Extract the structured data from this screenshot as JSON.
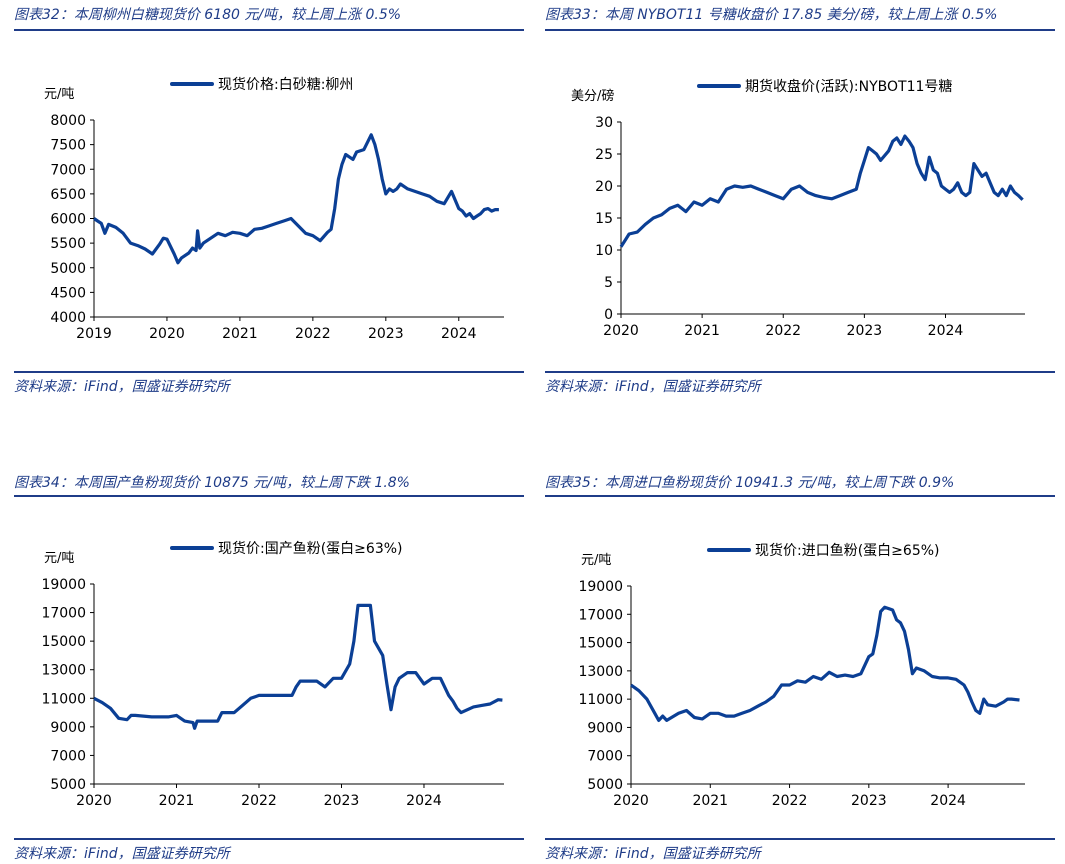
{
  "panels": [
    {
      "caption": "图表32：本周柳州白糖现货价 6180 元/吨，较上周上涨 0.5%",
      "source": "资料来源：iFind，国盛证券研究所"
    },
    {
      "caption": "图表33：本周 NYBOT11 号糖收盘价 17.85 美分/磅，较上周上涨 0.5%",
      "source": "资料来源：iFind，国盛证券研究所"
    },
    {
      "caption": "图表34：本周国产鱼粉现货价 10875 元/吨，较上周下跌 1.8%",
      "source": "资料来源：iFind，国盛证券研究所"
    },
    {
      "caption": "图表35：本周进口鱼粉现货价 10941.3 元/吨，较上周下跌 0.9%",
      "source": "资料来源：iFind，国盛证券研究所"
    }
  ],
  "chart_data": [
    {
      "type": "line",
      "ylabel": "元/吨",
      "yticks": [
        4000,
        4500,
        5000,
        5500,
        6000,
        6500,
        7000,
        7500,
        8000
      ],
      "ylim": [
        4000,
        8000
      ],
      "xticks": [
        "2019",
        "2020",
        "2021",
        "2022",
        "2023",
        "2024"
      ],
      "xlim": [
        2019,
        2024.62
      ],
      "legend": "top",
      "grid": false,
      "color": "#0b3f95",
      "series": [
        {
          "name": "现货价格:白砂糖:柳州",
          "x": [
            2019.0,
            2019.05,
            2019.1,
            2019.15,
            2019.2,
            2019.3,
            2019.4,
            2019.5,
            2019.6,
            2019.7,
            2019.8,
            2019.9,
            2019.95,
            2020.0,
            2020.1,
            2020.15,
            2020.2,
            2020.3,
            2020.35,
            2020.4,
            2020.42,
            2020.45,
            2020.5,
            2020.6,
            2020.7,
            2020.8,
            2020.9,
            2021.0,
            2021.1,
            2021.2,
            2021.3,
            2021.4,
            2021.5,
            2021.6,
            2021.7,
            2021.8,
            2021.9,
            2022.0,
            2022.1,
            2022.2,
            2022.25,
            2022.3,
            2022.35,
            2022.4,
            2022.45,
            2022.5,
            2022.55,
            2022.6,
            2022.7,
            2022.8,
            2022.85,
            2022.9,
            2022.95,
            2023.0,
            2023.05,
            2023.1,
            2023.15,
            2023.2,
            2023.3,
            2023.4,
            2023.5,
            2023.6,
            2023.7,
            2023.8,
            2023.9,
            2024.0,
            2024.05,
            2024.1,
            2024.15,
            2024.2,
            2024.25,
            2024.3,
            2024.35,
            2024.4,
            2024.45,
            2024.5,
            2024.55
          ],
          "y": [
            6000,
            5950,
            5900,
            5700,
            5880,
            5820,
            5700,
            5500,
            5450,
            5380,
            5280,
            5480,
            5600,
            5580,
            5280,
            5100,
            5200,
            5300,
            5400,
            5350,
            5750,
            5400,
            5500,
            5600,
            5700,
            5650,
            5720,
            5700,
            5650,
            5780,
            5800,
            5850,
            5900,
            5950,
            6000,
            5850,
            5700,
            5650,
            5550,
            5720,
            5780,
            6200,
            6800,
            7100,
            7300,
            7250,
            7200,
            7350,
            7400,
            7700,
            7500,
            7200,
            6800,
            6500,
            6600,
            6550,
            6600,
            6700,
            6600,
            6550,
            6500,
            6450,
            6350,
            6300,
            6550,
            6200,
            6150,
            6050,
            6100,
            6000,
            6050,
            6100,
            6180,
            6200,
            6150,
            6180,
            6180
          ]
        }
      ]
    },
    {
      "type": "line",
      "ylabel": "美分/磅",
      "yticks": [
        0,
        5,
        10,
        15,
        20,
        25,
        30
      ],
      "ylim": [
        0,
        30
      ],
      "xticks": [
        "2020",
        "2021",
        "2022",
        "2023",
        "2024"
      ],
      "xlim": [
        2020,
        2024.98
      ],
      "legend": "top",
      "grid": false,
      "color": "#0b3f95",
      "series": [
        {
          "name": "期货收盘价(活跃):NYBOT11号糖",
          "x": [
            2020.0,
            2020.05,
            2020.1,
            2020.2,
            2020.3,
            2020.4,
            2020.5,
            2020.6,
            2020.7,
            2020.8,
            2020.9,
            2021.0,
            2021.1,
            2021.2,
            2021.3,
            2021.4,
            2021.5,
            2021.6,
            2021.7,
            2021.8,
            2021.9,
            2022.0,
            2022.1,
            2022.2,
            2022.3,
            2022.4,
            2022.5,
            2022.6,
            2022.7,
            2022.8,
            2022.9,
            2022.95,
            2023.0,
            2023.05,
            2023.1,
            2023.15,
            2023.2,
            2023.3,
            2023.35,
            2023.4,
            2023.45,
            2023.5,
            2023.55,
            2023.6,
            2023.65,
            2023.7,
            2023.75,
            2023.8,
            2023.85,
            2023.9,
            2023.95,
            2024.0,
            2024.05,
            2024.1,
            2024.15,
            2024.2,
            2024.25,
            2024.3,
            2024.35,
            2024.4,
            2024.45,
            2024.5,
            2024.55,
            2024.6,
            2024.65,
            2024.7,
            2024.75,
            2024.8,
            2024.85,
            2024.9,
            2024.95
          ],
          "y": [
            10.5,
            11.5,
            12.5,
            12.8,
            14.0,
            15.0,
            15.5,
            16.5,
            17.0,
            16.0,
            17.5,
            17.0,
            18.0,
            17.5,
            19.5,
            20.0,
            19.8,
            20.0,
            19.5,
            19.0,
            18.5,
            18.0,
            19.5,
            20.0,
            19.0,
            18.5,
            18.2,
            18.0,
            18.5,
            19.0,
            19.5,
            22.0,
            24.0,
            26.0,
            25.5,
            25.0,
            24.0,
            25.5,
            27.0,
            27.5,
            26.5,
            27.8,
            27.0,
            26.0,
            23.5,
            22.0,
            21.0,
            24.5,
            22.5,
            22.0,
            20.0,
            19.5,
            19.0,
            19.5,
            20.5,
            19.0,
            18.5,
            19.0,
            23.5,
            22.5,
            21.5,
            22.0,
            20.5,
            19.0,
            18.5,
            19.5,
            18.5,
            20.0,
            19.0,
            18.5,
            17.85
          ]
        }
      ]
    },
    {
      "type": "line",
      "ylabel": "元/吨",
      "yticks": [
        5000,
        7000,
        9000,
        11000,
        13000,
        15000,
        17000,
        19000
      ],
      "ylim": [
        5000,
        19000
      ],
      "xticks": [
        "2020",
        "2021",
        "2022",
        "2023",
        "2024"
      ],
      "xlim": [
        2020,
        2024.97
      ],
      "legend": "top",
      "grid": false,
      "color": "#0b3f95",
      "series": [
        {
          "name": "现货价:国产鱼粉(蛋白≥63%)",
          "x": [
            2020.0,
            2020.1,
            2020.2,
            2020.3,
            2020.4,
            2020.45,
            2020.5,
            2020.7,
            2020.9,
            2021.0,
            2021.1,
            2021.2,
            2021.22,
            2021.25,
            2021.5,
            2021.55,
            2021.7,
            2021.8,
            2021.9,
            2022.0,
            2022.3,
            2022.4,
            2022.45,
            2022.5,
            2022.7,
            2022.8,
            2022.9,
            2023.0,
            2023.1,
            2023.15,
            2023.2,
            2023.35,
            2023.4,
            2023.5,
            2023.55,
            2023.6,
            2023.65,
            2023.7,
            2023.8,
            2023.9,
            2024.0,
            2024.1,
            2024.2,
            2024.3,
            2024.35,
            2024.4,
            2024.45,
            2024.6,
            2024.7,
            2024.8,
            2024.9,
            2024.95
          ],
          "y": [
            11000,
            10700,
            10300,
            9600,
            9500,
            9800,
            9800,
            9700,
            9700,
            9800,
            9400,
            9300,
            8900,
            9400,
            9400,
            10000,
            10000,
            10500,
            11000,
            11200,
            11200,
            11200,
            11800,
            12200,
            12200,
            11800,
            12400,
            12400,
            13400,
            15000,
            17500,
            17500,
            15000,
            14000,
            12000,
            10200,
            11800,
            12400,
            12800,
            12800,
            12000,
            12400,
            12400,
            11200,
            10800,
            10300,
            10000,
            10400,
            10500,
            10600,
            10900,
            10875
          ]
        }
      ]
    },
    {
      "type": "line",
      "ylabel": "元/吨",
      "yticks": [
        5000,
        7000,
        9000,
        11000,
        13000,
        15000,
        17000,
        19000
      ],
      "ylim": [
        5000,
        19000
      ],
      "xticks": [
        "2020",
        "2021",
        "2022",
        "2023",
        "2024"
      ],
      "xlim": [
        2020,
        2024.97
      ],
      "legend": "top",
      "grid": false,
      "color": "#0b3f95",
      "series": [
        {
          "name": "现货价:进口鱼粉(蛋白≥65%)",
          "x": [
            2020.0,
            2020.1,
            2020.2,
            2020.3,
            2020.35,
            2020.4,
            2020.45,
            2020.6,
            2020.7,
            2020.8,
            2020.9,
            2021.0,
            2021.1,
            2021.2,
            2021.3,
            2021.4,
            2021.5,
            2021.6,
            2021.7,
            2021.8,
            2021.9,
            2022.0,
            2022.1,
            2022.2,
            2022.3,
            2022.4,
            2022.5,
            2022.6,
            2022.7,
            2022.8,
            2022.9,
            2023.0,
            2023.05,
            2023.1,
            2023.15,
            2023.2,
            2023.3,
            2023.35,
            2023.4,
            2023.45,
            2023.5,
            2023.55,
            2023.6,
            2023.7,
            2023.8,
            2023.9,
            2024.0,
            2024.1,
            2024.2,
            2024.25,
            2024.3,
            2024.35,
            2024.4,
            2024.45,
            2024.5,
            2024.6,
            2024.7,
            2024.75,
            2024.8,
            2024.9
          ],
          "y": [
            12000,
            11600,
            11000,
            10000,
            9500,
            9800,
            9500,
            10000,
            10200,
            9700,
            9600,
            10000,
            10000,
            9800,
            9800,
            10000,
            10200,
            10500,
            10800,
            11200,
            12000,
            12000,
            12300,
            12200,
            12600,
            12400,
            12900,
            12600,
            12700,
            12600,
            12800,
            14000,
            14200,
            15500,
            17200,
            17500,
            17300,
            16600,
            16400,
            15800,
            14500,
            12800,
            13200,
            13000,
            12600,
            12500,
            12500,
            12400,
            12000,
            11500,
            10800,
            10200,
            10000,
            11000,
            10600,
            10500,
            10800,
            11000,
            11000,
            10941.3
          ]
        }
      ]
    }
  ]
}
